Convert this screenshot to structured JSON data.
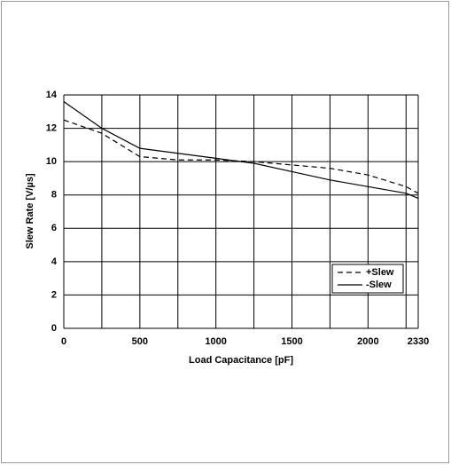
{
  "chart_data": {
    "type": "line",
    "xlabel": "Load Capacitance [pF]",
    "ylabel": "Slew Rate [V/µs]",
    "x": [
      0,
      250,
      500,
      750,
      1000,
      1250,
      1500,
      1750,
      2000,
      2250,
      2330
    ],
    "series": [
      {
        "name": "+Slew",
        "color": "#000000",
        "dash": true,
        "values": [
          12.5,
          11.7,
          10.3,
          10.1,
          10.1,
          10.0,
          9.8,
          9.6,
          9.2,
          8.5,
          8.1
        ]
      },
      {
        "name": "-Slew",
        "color": "#000000",
        "dash": false,
        "values": [
          13.6,
          12.0,
          10.8,
          10.5,
          10.2,
          9.9,
          9.4,
          8.9,
          8.5,
          8.1,
          7.8
        ]
      }
    ],
    "xlim": [
      0,
      2330
    ],
    "xticks": [
      0,
      500,
      1000,
      1500,
      2000,
      2330
    ],
    "xminorticks": [
      250,
      750,
      1250,
      1750,
      2250
    ],
    "ylim": [
      0,
      14
    ],
    "yticks": [
      0,
      2,
      4,
      6,
      8,
      10,
      12,
      14
    ],
    "grid": true,
    "legend": "lower right"
  }
}
